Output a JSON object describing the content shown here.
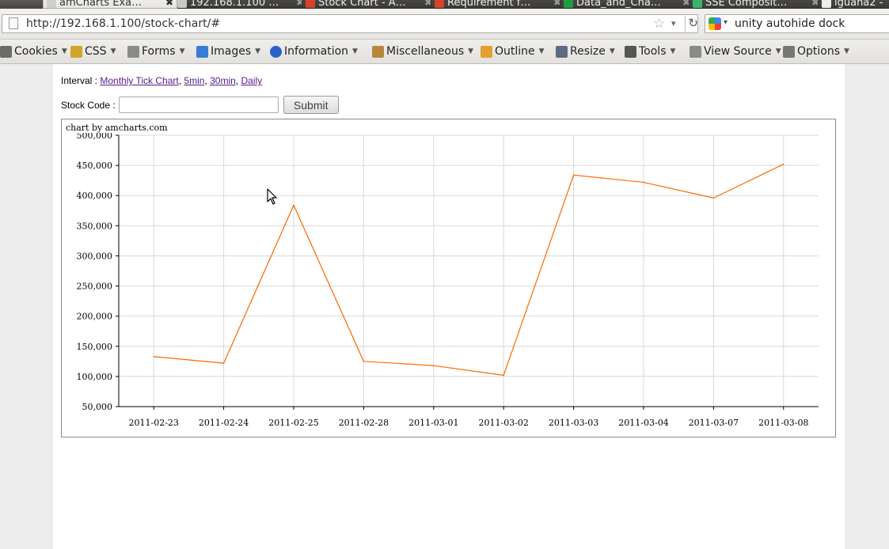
{
  "tabs": [
    {
      "label": "amCharts Exa…",
      "active": true,
      "favicon_color": "#cfcfcf"
    },
    {
      "label": "192.168.1.100 …",
      "active": false,
      "favicon_color": "#c8c8c8"
    },
    {
      "label": "Stock Chart - A…",
      "active": false,
      "favicon_color": "#d9412c"
    },
    {
      "label": "Requirement f…",
      "active": false,
      "favicon_color": "#d9412c"
    },
    {
      "label": "Data_and_Cha…",
      "active": false,
      "favicon_color": "#1f9d41"
    },
    {
      "label": "SSE Composit…",
      "active": false,
      "favicon_color": "#3bb36b"
    },
    {
      "label": "iguana2 -",
      "active": false,
      "favicon_color": "#eeeeee"
    }
  ],
  "address_bar": {
    "url": "http://192.168.1.100/stock-chart/#"
  },
  "search_bar": {
    "query": "unity autohide dock"
  },
  "dev_toolbar": [
    {
      "label": "Cookies",
      "icon": "cookie-icon",
      "color": "#6b6b6b"
    },
    {
      "label": "CSS",
      "icon": "css-wand-icon",
      "color": "#d0a52a"
    },
    {
      "label": "Forms",
      "icon": "forms-icon",
      "color": "#8a8a8a"
    },
    {
      "label": "Images",
      "icon": "images-icon",
      "color": "#3a7bd5"
    },
    {
      "label": "Information",
      "icon": "information-icon",
      "color": "#2a62c9"
    },
    {
      "label": "Miscellaneous",
      "icon": "miscellaneous-icon",
      "color": "#b6883b"
    },
    {
      "label": "Outline",
      "icon": "pencil-icon",
      "color": "#e0a030"
    },
    {
      "label": "Resize",
      "icon": "resize-icon",
      "color": "#5e6b85"
    },
    {
      "label": "Tools",
      "icon": "tools-icon",
      "color": "#555555"
    },
    {
      "label": "View Source",
      "icon": "view-source-icon",
      "color": "#8a8a8a"
    },
    {
      "label": "Options",
      "icon": "options-icon",
      "color": "#777777"
    }
  ],
  "page": {
    "interval_label": "Interval :",
    "interval_links": [
      "Monthly Tick Chart",
      "5min",
      "30min",
      "Daily"
    ],
    "stock_code_label": "Stock Code :",
    "stock_code_value": "",
    "submit_label": "Submit",
    "chart_credit": "chart by amcharts.com"
  },
  "chart_data": {
    "type": "line",
    "x": [
      "2011-02-23",
      "2011-02-24",
      "2011-02-25",
      "2011-02-28",
      "2011-03-01",
      "2011-03-02",
      "2011-03-03",
      "2011-03-04",
      "2011-03-07",
      "2011-03-08"
    ],
    "series": [
      {
        "values": [
          133000,
          122000,
          384000,
          125000,
          118000,
          102000,
          434000,
          422000,
          396000,
          452000
        ],
        "color": "#ff6600"
      }
    ],
    "y_ticks": [
      "50,000",
      "100,000",
      "150,000",
      "200,000",
      "250,000",
      "300,000",
      "350,000",
      "400,000",
      "450,000",
      "500,000"
    ],
    "ylim": [
      50000,
      500000
    ],
    "grid": true,
    "title": "",
    "xlabel": "",
    "ylabel": ""
  }
}
